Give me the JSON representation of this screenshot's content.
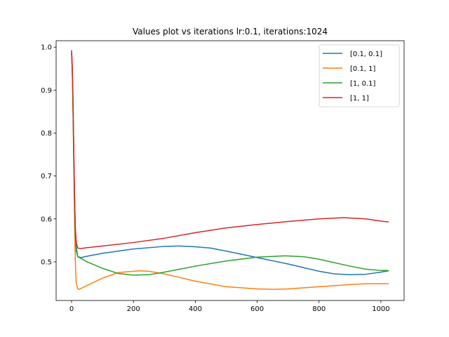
{
  "chart_data": {
    "type": "line",
    "title": "Values plot vs iterations lr:0.1, iterations:1024",
    "xlabel": "",
    "ylabel": "",
    "xlim": [
      -50,
      1075
    ],
    "ylim": [
      0.41,
      1.015
    ],
    "xticks": [
      0,
      200,
      400,
      600,
      800,
      1000
    ],
    "yticks": [
      0.5,
      0.6,
      0.7,
      0.8,
      0.9,
      1.0
    ],
    "xtick_labels": [
      "0",
      "200",
      "400",
      "600",
      "800",
      "1000"
    ],
    "ytick_labels": [
      "0.5",
      "0.6",
      "0.7",
      "0.8",
      "0.9",
      "1.0"
    ],
    "grid": false,
    "legend_position": "top-right",
    "series": [
      {
        "name": "[0.1, 0.1]",
        "color": "#1f77b4",
        "x": [
          0,
          2,
          4,
          6,
          8,
          10,
          12,
          15,
          20,
          30,
          50,
          100,
          200,
          300,
          350,
          400,
          450,
          500,
          600,
          700,
          800,
          850,
          900,
          950,
          1000,
          1024
        ],
        "y": [
          0.985,
          0.95,
          0.89,
          0.8,
          0.72,
          0.64,
          0.58,
          0.535,
          0.512,
          0.51,
          0.513,
          0.52,
          0.53,
          0.536,
          0.537,
          0.535,
          0.532,
          0.525,
          0.51,
          0.495,
          0.478,
          0.472,
          0.47,
          0.471,
          0.476,
          0.479
        ]
      },
      {
        "name": "[0.1, 1]",
        "color": "#ff7f0e",
        "x": [
          0,
          2,
          4,
          6,
          8,
          10,
          12,
          15,
          20,
          25,
          30,
          50,
          100,
          150,
          200,
          220,
          250,
          300,
          400,
          500,
          600,
          650,
          700,
          800,
          900,
          950,
          1000,
          1024
        ],
        "y": [
          0.99,
          0.95,
          0.88,
          0.78,
          0.68,
          0.58,
          0.5,
          0.45,
          0.437,
          0.436,
          0.438,
          0.445,
          0.462,
          0.475,
          0.478,
          0.479,
          0.478,
          0.472,
          0.455,
          0.442,
          0.437,
          0.436,
          0.437,
          0.442,
          0.447,
          0.449,
          0.449,
          0.449
        ]
      },
      {
        "name": "[1, 0.1]",
        "color": "#2ca02c",
        "x": [
          0,
          2,
          4,
          6,
          8,
          10,
          12,
          15,
          20,
          30,
          50,
          100,
          150,
          200,
          250,
          300,
          400,
          500,
          600,
          690,
          750,
          800,
          900,
          950,
          1000,
          1024
        ],
        "y": [
          0.985,
          0.95,
          0.88,
          0.79,
          0.7,
          0.62,
          0.56,
          0.525,
          0.512,
          0.508,
          0.5,
          0.485,
          0.473,
          0.469,
          0.47,
          0.476,
          0.49,
          0.502,
          0.511,
          0.514,
          0.512,
          0.506,
          0.49,
          0.483,
          0.48,
          0.48
        ]
      },
      {
        "name": "[1, 1]",
        "color": "#d62728",
        "x": [
          0,
          2,
          4,
          6,
          8,
          10,
          12,
          15,
          20,
          30,
          50,
          100,
          200,
          300,
          400,
          500,
          600,
          700,
          800,
          880,
          950,
          1000,
          1024
        ],
        "y": [
          0.992,
          0.96,
          0.9,
          0.81,
          0.72,
          0.64,
          0.58,
          0.545,
          0.532,
          0.531,
          0.533,
          0.537,
          0.545,
          0.555,
          0.568,
          0.579,
          0.587,
          0.594,
          0.6,
          0.603,
          0.6,
          0.595,
          0.593
        ]
      }
    ]
  }
}
